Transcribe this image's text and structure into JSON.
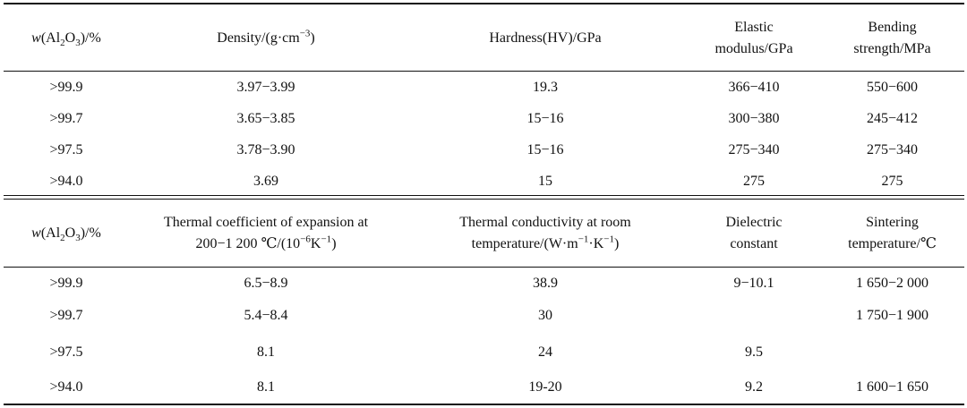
{
  "table1": {
    "headers": {
      "wal2o3": {
        "w": "w",
        "open": "(Al",
        "sub2": "2",
        "o": "O",
        "sub3": "3",
        "close": ")/%"
      },
      "density": {
        "main": "Density/(g·cm",
        "sup": "−3",
        "close": ")"
      },
      "hardness": "Hardness(HV)/GPa",
      "elastic": [
        "Elastic",
        "modulus/GPa"
      ],
      "bending": [
        "Bending",
        "strength/MPa"
      ]
    },
    "rows": [
      {
        "purity": ">99.9",
        "density": "3.97−3.99",
        "hardness": "19.3",
        "elastic": "366−410",
        "bending": "550−600"
      },
      {
        "purity": ">99.7",
        "density": "3.65−3.85",
        "hardness": "15−16",
        "elastic": "300−380",
        "bending": "245−412"
      },
      {
        "purity": ">97.5",
        "density": "3.78−3.90",
        "hardness": "15−16",
        "elastic": "275−340",
        "bending": "275−340"
      },
      {
        "purity": ">94.0",
        "density": "3.69",
        "hardness": "15",
        "elastic": "275",
        "bending": "275"
      }
    ]
  },
  "table2": {
    "headers": {
      "wal2o3": {
        "w": "w",
        "open": "(Al",
        "sub2": "2",
        "o": "O",
        "sub3": "3",
        "close": ")/%"
      },
      "expansion": {
        "line1": "Thermal coefficient of expansion at",
        "line2a": "200−1 200 ℃/(10",
        "sup1": "−6",
        "mid": "K",
        "sup2": "−1",
        "close": ")"
      },
      "conductivity": {
        "line1": "Thermal conductivity at room",
        "line2a": "temperature/(W·m",
        "sup1": "−1",
        "mid": "·K",
        "sup2": "−1",
        "close": ")"
      },
      "dielectric": [
        "Dielectric",
        "constant"
      ],
      "sintering": [
        "Sintering",
        "temperature/℃"
      ]
    },
    "rows": [
      {
        "purity": ">99.9",
        "expansion": "6.5−8.9",
        "conductivity": "38.9",
        "dielectric": "9−10.1",
        "sintering": "1 650−2 000"
      },
      {
        "purity": ">99.7",
        "expansion": "5.4−8.4",
        "conductivity": "30",
        "dielectric": "",
        "sintering": "1 750−1 900"
      },
      {
        "purity": ">97.5",
        "expansion": "8.1",
        "conductivity": "24",
        "dielectric": "9.5",
        "sintering": ""
      },
      {
        "purity": ">94.0",
        "expansion": "8.1",
        "conductivity": "19-20",
        "dielectric": "9.2",
        "sintering": "1 600−1 650"
      }
    ]
  }
}
